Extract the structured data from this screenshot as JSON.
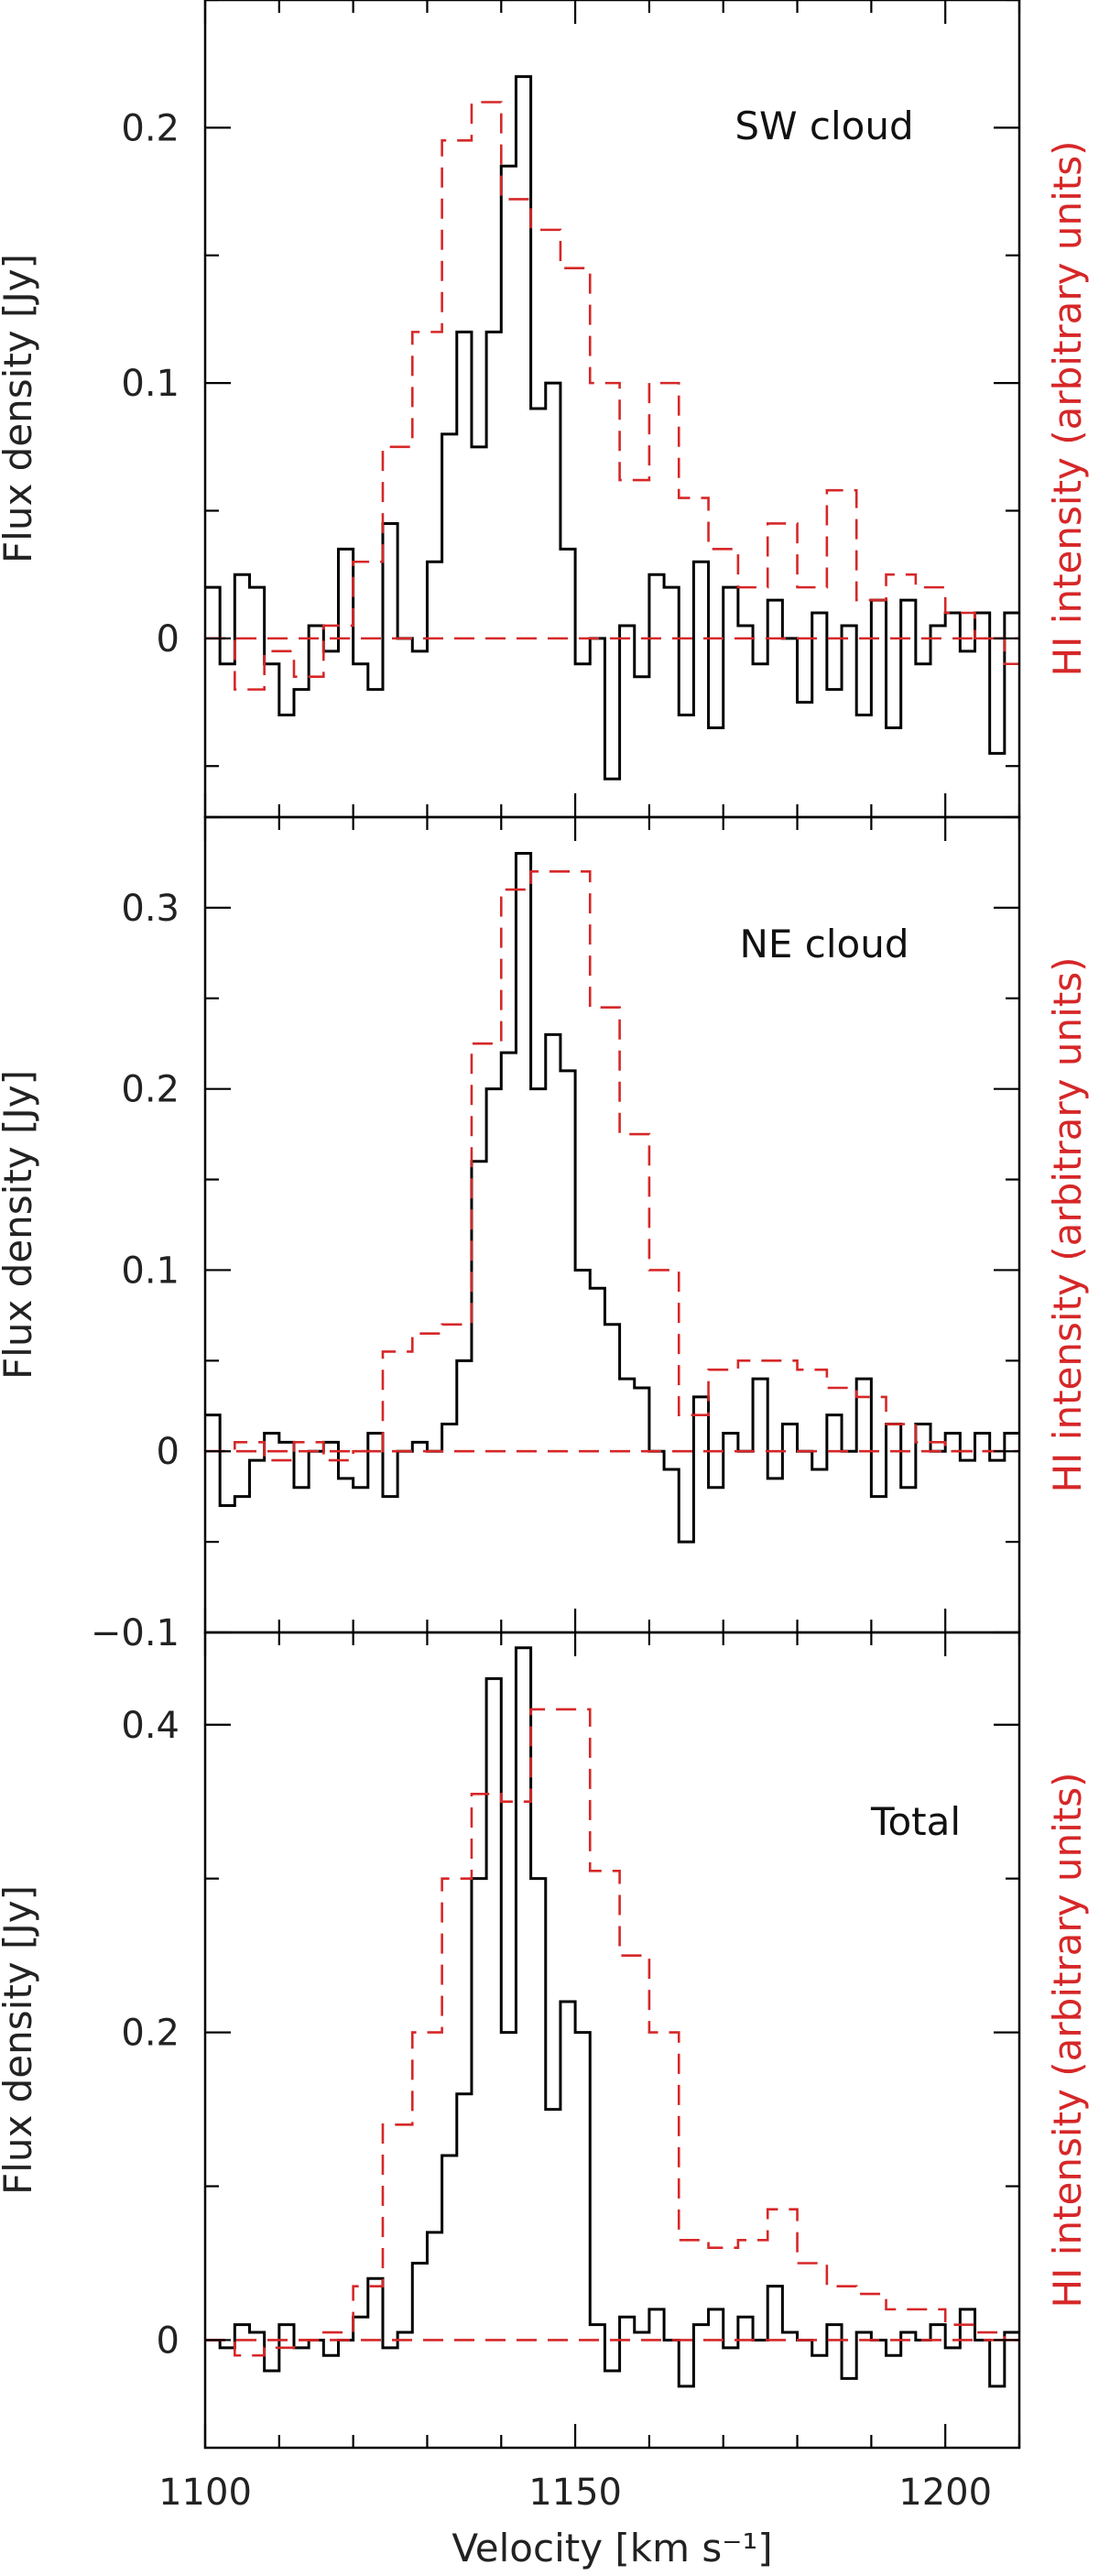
{
  "chart_data": [
    {
      "type": "line",
      "label": "SW cloud",
      "ylabel": "Flux density [Jy]",
      "ylabel_right": "HI intensity (arbitrary units)",
      "xlim": [
        1100,
        1210
      ],
      "ylim": [
        -0.07,
        0.25
      ],
      "yticks": [
        0,
        0.1,
        0.2
      ],
      "ytick_labels": [
        "0",
        "0.1",
        "0.2"
      ],
      "series": [
        {
          "style": "solid",
          "color": "#000000",
          "x": [
            1100,
            1102,
            1104,
            1106,
            1108,
            1110,
            1112,
            1114,
            1116,
            1118,
            1120,
            1122,
            1124,
            1126,
            1128,
            1130,
            1132,
            1134,
            1136,
            1138,
            1140,
            1142,
            1144,
            1146,
            1148,
            1150,
            1152,
            1154,
            1156,
            1158,
            1160,
            1162,
            1164,
            1166,
            1168,
            1170,
            1172,
            1174,
            1176,
            1178,
            1180,
            1182,
            1184,
            1186,
            1188,
            1190,
            1192,
            1194,
            1196,
            1198,
            1200,
            1202,
            1204,
            1206,
            1208
          ],
          "values": [
            0.02,
            -0.01,
            0.025,
            0.02,
            -0.01,
            -0.03,
            -0.02,
            0.005,
            -0.005,
            0.035,
            -0.01,
            -0.02,
            0.045,
            0.0,
            -0.005,
            0.03,
            0.08,
            0.12,
            0.075,
            0.12,
            0.185,
            0.22,
            0.09,
            0.1,
            0.035,
            -0.01,
            0.0,
            -0.055,
            0.005,
            -0.015,
            0.025,
            0.02,
            -0.03,
            0.03,
            -0.035,
            0.02,
            0.005,
            -0.01,
            0.015,
            0.0,
            -0.025,
            0.01,
            -0.02,
            0.005,
            -0.03,
            0.015,
            -0.035,
            0.015,
            -0.01,
            0.005,
            0.01,
            -0.005,
            0.01,
            -0.045,
            0.01
          ]
        },
        {
          "style": "dashed",
          "color": "#d62728",
          "x": [
            1100,
            1104,
            1108,
            1112,
            1116,
            1120,
            1124,
            1128,
            1132,
            1136,
            1140,
            1144,
            1148,
            1152,
            1156,
            1160,
            1164,
            1168,
            1172,
            1176,
            1180,
            1184,
            1188,
            1192,
            1196,
            1200,
            1204,
            1208
          ],
          "values": [
            0.0,
            -0.02,
            -0.005,
            -0.015,
            0.005,
            0.03,
            0.075,
            0.12,
            0.195,
            0.21,
            0.172,
            0.16,
            0.145,
            0.1,
            0.062,
            0.1,
            0.055,
            0.035,
            0.02,
            0.045,
            0.02,
            0.058,
            0.015,
            0.025,
            0.02,
            0.01,
            0.0,
            -0.01
          ]
        },
        {
          "style": "dashed-baseline",
          "color": "#d62728",
          "x": [
            1100,
            1210
          ],
          "values": [
            0,
            0
          ]
        }
      ]
    },
    {
      "type": "line",
      "label": "NE cloud",
      "ylabel": "Flux density [Jy]",
      "ylabel_right": "HI intensity (arbitrary units)",
      "xlim": [
        1100,
        1210
      ],
      "ylim": [
        -0.1,
        0.35
      ],
      "yticks": [
        -0.1,
        0,
        0.1,
        0.2,
        0.3
      ],
      "ytick_labels": [
        "−0.1",
        "0",
        "0.1",
        "0.2",
        "0.3"
      ],
      "series": [
        {
          "style": "solid",
          "color": "#000000",
          "x": [
            1100,
            1102,
            1104,
            1106,
            1108,
            1110,
            1112,
            1114,
            1116,
            1118,
            1120,
            1122,
            1124,
            1126,
            1128,
            1130,
            1132,
            1134,
            1136,
            1138,
            1140,
            1142,
            1144,
            1146,
            1148,
            1150,
            1152,
            1154,
            1156,
            1158,
            1160,
            1162,
            1164,
            1166,
            1168,
            1170,
            1172,
            1174,
            1176,
            1178,
            1180,
            1182,
            1184,
            1186,
            1188,
            1190,
            1192,
            1194,
            1196,
            1198,
            1200,
            1202,
            1204,
            1206,
            1208
          ],
          "values": [
            0.02,
            -0.03,
            -0.025,
            -0.005,
            0.01,
            0.005,
            -0.02,
            0.0,
            0.005,
            -0.015,
            -0.02,
            0.01,
            -0.025,
            0.0,
            0.005,
            0.0,
            0.015,
            0.05,
            0.16,
            0.2,
            0.22,
            0.33,
            0.2,
            0.23,
            0.21,
            0.1,
            0.09,
            0.07,
            0.04,
            0.035,
            0.0,
            -0.01,
            -0.05,
            0.03,
            -0.02,
            0.01,
            0.0,
            0.04,
            -0.015,
            0.015,
            0.0,
            -0.01,
            0.02,
            0.0,
            0.04,
            -0.025,
            0.015,
            -0.02,
            0.015,
            0.0,
            0.01,
            -0.005,
            0.01,
            -0.005,
            0.01
          ]
        },
        {
          "style": "dashed",
          "color": "#d62728",
          "x": [
            1100,
            1104,
            1108,
            1112,
            1116,
            1120,
            1124,
            1128,
            1132,
            1136,
            1140,
            1144,
            1148,
            1152,
            1156,
            1160,
            1164,
            1168,
            1172,
            1176,
            1180,
            1184,
            1188,
            1192,
            1196,
            1200,
            1204,
            1208
          ],
          "values": [
            0.0,
            0.005,
            -0.005,
            0.005,
            -0.005,
            0.0,
            0.055,
            0.065,
            0.07,
            0.225,
            0.31,
            0.32,
            0.32,
            0.245,
            0.175,
            0.1,
            0.02,
            0.045,
            0.05,
            0.05,
            0.045,
            0.035,
            0.03,
            0.015,
            0.005,
            0.0,
            0.0,
            0.0
          ]
        },
        {
          "style": "dashed-baseline",
          "color": "#d62728",
          "x": [
            1100,
            1210
          ],
          "values": [
            0,
            0
          ]
        }
      ]
    },
    {
      "type": "line",
      "label": "Total",
      "ylabel": "Flux density [Jy]",
      "ylabel_right": "HI intensity (arbitrary units)",
      "xlabel": "Velocity [km s⁻¹]",
      "xlim": [
        1100,
        1210
      ],
      "xticks": [
        1100,
        1150,
        1200
      ],
      "xtick_labels": [
        "1100",
        "1150",
        "1200"
      ],
      "ylim": [
        -0.07,
        0.46
      ],
      "yticks": [
        0,
        0.2,
        0.4
      ],
      "ytick_labels": [
        "0",
        "0.2",
        "0.4"
      ],
      "series": [
        {
          "style": "solid",
          "color": "#000000",
          "x": [
            1100,
            1102,
            1104,
            1106,
            1108,
            1110,
            1112,
            1114,
            1116,
            1118,
            1120,
            1122,
            1124,
            1126,
            1128,
            1130,
            1132,
            1134,
            1136,
            1138,
            1140,
            1142,
            1144,
            1146,
            1148,
            1150,
            1152,
            1154,
            1156,
            1158,
            1160,
            1162,
            1164,
            1166,
            1168,
            1170,
            1172,
            1174,
            1176,
            1178,
            1180,
            1182,
            1184,
            1186,
            1188,
            1190,
            1192,
            1194,
            1196,
            1198,
            1200,
            1202,
            1204,
            1206,
            1208
          ],
          "values": [
            0.0,
            -0.005,
            0.01,
            0.005,
            -0.02,
            0.01,
            -0.005,
            0.0,
            -0.01,
            0.0,
            0.015,
            0.04,
            -0.005,
            0.005,
            0.05,
            0.07,
            0.12,
            0.16,
            0.3,
            0.43,
            0.2,
            0.45,
            0.3,
            0.15,
            0.22,
            0.2,
            0.01,
            -0.02,
            0.015,
            0.005,
            0.02,
            0.0,
            -0.03,
            0.01,
            0.02,
            -0.005,
            0.015,
            0.0,
            0.035,
            0.005,
            0.0,
            -0.01,
            0.01,
            -0.025,
            0.005,
            0.0,
            -0.01,
            0.005,
            0.0,
            0.01,
            -0.005,
            0.02,
            0.0,
            -0.03,
            0.005
          ]
        },
        {
          "style": "dashed",
          "color": "#d62728",
          "x": [
            1100,
            1104,
            1108,
            1112,
            1116,
            1120,
            1124,
            1128,
            1132,
            1136,
            1140,
            1144,
            1148,
            1152,
            1156,
            1160,
            1164,
            1168,
            1172,
            1176,
            1180,
            1184,
            1188,
            1192,
            1196,
            1200,
            1204,
            1208
          ],
          "values": [
            0.0,
            -0.01,
            -0.005,
            0.0,
            0.005,
            0.035,
            0.14,
            0.2,
            0.3,
            0.355,
            0.35,
            0.41,
            0.41,
            0.305,
            0.25,
            0.2,
            0.065,
            0.06,
            0.065,
            0.085,
            0.05,
            0.035,
            0.03,
            0.02,
            0.02,
            0.01,
            0.005,
            0.0
          ]
        },
        {
          "style": "dashed-baseline",
          "color": "#d62728",
          "x": [
            1100,
            1210
          ],
          "values": [
            0,
            0
          ]
        }
      ]
    }
  ]
}
